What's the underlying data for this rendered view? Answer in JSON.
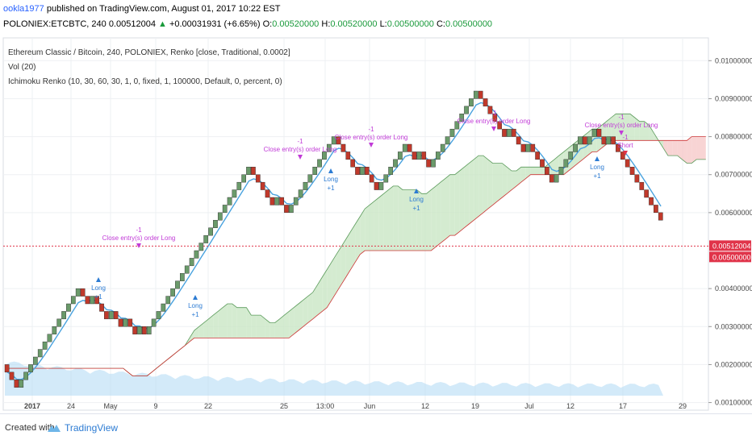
{
  "header": {
    "user": "ookla1977",
    "published": "published on TradingView.com, August 01, 2017 10:22 EST",
    "symbol_line": "POLONIEX:ETCBTC, 240  0.00512004",
    "change": "+0.00031931 (+6.65%)",
    "o_label": "O:",
    "o_value": "0.00520000",
    "h_label": "H:",
    "h_value": "0.00520000",
    "l_label": "L:",
    "l_value": "0.00500000",
    "c_label": "C:",
    "c_value": "0.00500000"
  },
  "legend": {
    "line1": "Ethereum Classic / Bitcoin, 240, POLONIEX, Renko [close, Traditional, 0.0002]",
    "line2": "Vol (20)",
    "line3": "Ichimoku Renko (10, 30, 60, 30, 1, 0, fixed, 1, 100000, Default, 0, percent, 0)"
  },
  "footer": {
    "created": "Created with",
    "brand": "TradingView"
  },
  "chart_data": {
    "type": "renko",
    "y_ticks": [
      "0.01000000",
      "0.00900000",
      "0.00800000",
      "0.00700000",
      "0.00600000",
      "0.00400000",
      "0.00300000",
      "0.00200000",
      "0.00100000"
    ],
    "x_ticks": [
      "2017",
      "24",
      "May",
      "9",
      "22",
      "25",
      "13:00",
      "Jun",
      "12",
      "19",
      "Jul",
      "12",
      "17",
      "29"
    ],
    "last_price_label": "0.00512004",
    "close_price_label": "0.00500000",
    "ylim": [
      0.0008,
      0.0106
    ],
    "brick_size": 0.0002,
    "colors": {
      "up": "#6a9a6a",
      "down": "#c0392b",
      "tenkan": "#4aa3df",
      "cloud_bull": "#c9e6c4",
      "cloud_bear": "#f6c9c9",
      "volume": "#b6dcf5"
    },
    "annotations": [
      {
        "text": "Close entry(s) order Long",
        "qty": "-1",
        "x_tick": "May"
      },
      {
        "text": "Long",
        "qty": "+1",
        "x_tick": "24"
      },
      {
        "text": "Long",
        "qty": "+1",
        "x_tick": "22"
      },
      {
        "text": "Close entry(s) order Long",
        "qty": "-1",
        "x_tick": "25"
      },
      {
        "text": "Long",
        "qty": "+1",
        "x_tick": "13:00"
      },
      {
        "text": "Close entry(s) order Long",
        "qty": "-1",
        "x_tick": "Jun"
      },
      {
        "text": "Long",
        "qty": "+1",
        "x_tick": "12"
      },
      {
        "text": "Close entry(s) order Long",
        "qty": "-1",
        "x_tick": "19"
      },
      {
        "text": "Close entry(s) order Long",
        "qty": "-1",
        "x_tick": "17"
      },
      {
        "text": "Long",
        "qty": "+1",
        "x_tick": "17"
      },
      {
        "text": "Short",
        "qty": "-1",
        "x_tick": "17"
      }
    ]
  }
}
